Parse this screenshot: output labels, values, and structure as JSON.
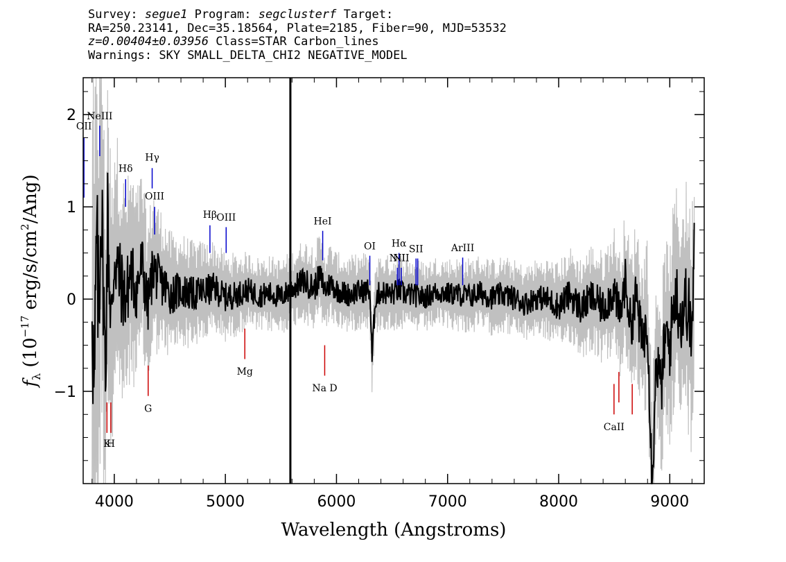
{
  "header": {
    "line1": {
      "survey_key": "Survey:",
      "survey": "segue1",
      "program_key": "Program:",
      "program": "segclusterf",
      "target_key": "Target:"
    },
    "line2": "RA=250.23141, Dec=35.18564, Plate=2185, Fiber=90, MJD=53532",
    "line3": {
      "redshift": "z=0.00404±0.03956",
      "class": "Class=STAR Carbon_lines"
    },
    "line4": "Warnings: SKY SMALL_DELTA_CHI2 NEGATIVE_MODEL"
  },
  "chart_data": {
    "type": "line",
    "title": "",
    "xlabel": "Wavelength (Angstroms)",
    "ylabel": "fλ (10⁻¹⁷ erg/s/cm²/Ang)",
    "ylabel_parts": {
      "f": "f",
      "sub": "λ",
      "a": " (10",
      "exp": "−17",
      "b": " erg/s/cm",
      "exp2": "2",
      "c": "/Ang)"
    },
    "xlim": [
      3720,
      9310
    ],
    "ylim": [
      -2.0,
      2.4
    ],
    "x_ticks": [
      4000,
      5000,
      6000,
      7000,
      8000,
      9000
    ],
    "x_tick_labels": [
      "4000",
      "5000",
      "6000",
      "7000",
      "8000",
      "9000"
    ],
    "y_ticks": [
      -1,
      0,
      1,
      2
    ],
    "y_tick_labels": [
      "−1",
      "0",
      "1",
      "2"
    ],
    "x_minor_step": 200,
    "y_minor_step": 0.25,
    "vertical_marker_x": 5585,
    "series": [
      {
        "role": "flux",
        "color": "#000000",
        "x": [
          3800,
          3820,
          3840,
          3860,
          3880,
          3900,
          3920,
          3940,
          3960,
          3980,
          4000,
          4050,
          4100,
          4150,
          4200,
          4250,
          4300,
          4350,
          4400,
          4450,
          4500,
          4600,
          4700,
          4800,
          4900,
          5000,
          5100,
          5200,
          5300,
          5400,
          5500,
          5580,
          5650,
          5700,
          5800,
          5850,
          5900,
          5950,
          6000,
          6100,
          6200,
          6300,
          6320,
          6350,
          6400,
          6500,
          6560,
          6600,
          6700,
          6800,
          6900,
          7000,
          7100,
          7200,
          7300,
          7400,
          7500,
          7600,
          7700,
          7800,
          7900,
          8000,
          8100,
          8200,
          8300,
          8400,
          8500,
          8550,
          8600,
          8650,
          8700,
          8750,
          8800,
          8840,
          8880,
          8920,
          8960,
          9000,
          9050,
          9100,
          9150,
          9200,
          9220
        ],
        "y": [
          0.25,
          -1.3,
          0.6,
          -0.2,
          1.1,
          0.3,
          -0.9,
          0.9,
          0.1,
          -0.3,
          0.5,
          0.2,
          0.0,
          0.3,
          0.1,
          0.4,
          -0.1,
          0.35,
          0.2,
          0.15,
          0.05,
          0.1,
          0.05,
          0.08,
          0.12,
          0.02,
          0.05,
          0.1,
          0.04,
          0.06,
          0.02,
          0.1,
          0.15,
          0.2,
          0.12,
          0.25,
          0.1,
          0.18,
          0.1,
          0.05,
          0.08,
          0.1,
          -0.65,
          0.02,
          0.08,
          0.05,
          0.1,
          0.06,
          0.04,
          0.02,
          0.08,
          0.06,
          0.05,
          0.03,
          0.07,
          0.02,
          0.05,
          0.01,
          -0.05,
          0.02,
          0.0,
          -0.08,
          0.05,
          -0.1,
          0.02,
          -0.1,
          0.1,
          -0.2,
          0.2,
          -0.3,
          0.05,
          -0.5,
          -0.2,
          -2.0,
          -0.6,
          -1.0,
          -0.4,
          -0.5,
          0.1,
          -0.2,
          0.0,
          -0.4,
          0.45
        ]
      },
      {
        "role": "error",
        "color": "#c0c0c0",
        "x": [
          3800,
          3850,
          3900,
          3950,
          4000,
          4100,
          4200,
          4300,
          4400,
          4500,
          4600,
          4800,
          5000,
          5200,
          5400,
          5600,
          5800,
          6000,
          6200,
          6400,
          6600,
          6800,
          7000,
          7200,
          7400,
          7600,
          7800,
          8000,
          8200,
          8400,
          8600,
          8800,
          9000,
          9220
        ],
        "y": [
          2.4,
          2.0,
          1.6,
          1.3,
          1.1,
          0.9,
          0.8,
          0.7,
          0.6,
          0.5,
          0.45,
          0.4,
          0.35,
          0.3,
          0.3,
          0.3,
          0.35,
          0.3,
          0.3,
          0.3,
          0.3,
          0.28,
          0.28,
          0.3,
          0.3,
          0.3,
          0.3,
          0.35,
          0.4,
          0.45,
          0.55,
          0.7,
          0.8,
          1.0
        ]
      }
    ],
    "lines": [
      {
        "label": "OII",
        "x": 3727,
        "color": "#0000cc",
        "y0": 1.1,
        "y1": 1.75,
        "label_y": 1.84
      },
      {
        "label": "NeIII",
        "x": 3869,
        "color": "#0000cc",
        "y0": 1.55,
        "y1": 1.88,
        "label_y": 1.95
      },
      {
        "label": "Hδ",
        "x": 4102,
        "color": "#0000cc",
        "y0": 1.0,
        "y1": 1.3,
        "label_y": 1.38
      },
      {
        "label": "Hγ",
        "x": 4341,
        "color": "#0000cc",
        "y0": 1.2,
        "y1": 1.42,
        "label_y": 1.5
      },
      {
        "label": "OIII",
        "x": 4363,
        "color": "#0000cc",
        "y0": 0.7,
        "y1": 1.0,
        "label_y": 1.08
      },
      {
        "label": "Hβ",
        "x": 4861,
        "color": "#0000cc",
        "y0": 0.5,
        "y1": 0.8,
        "label_y": 0.88
      },
      {
        "label": "OIII",
        "x": 5007,
        "color": "#0000cc",
        "y0": 0.5,
        "y1": 0.78,
        "label_y": 0.85
      },
      {
        "label": "HeI",
        "x": 5876,
        "color": "#0000cc",
        "y0": 0.42,
        "y1": 0.74,
        "label_y": 0.81
      },
      {
        "label": "OI",
        "x": 6300,
        "color": "#0000cc",
        "y0": 0.15,
        "y1": 0.47,
        "label_y": 0.54
      },
      {
        "label": "NII",
        "x": 6548,
        "color": "#0000cc",
        "y0": 0.15,
        "y1": 0.34,
        "label_y": 0.41
      },
      {
        "label": "Hα",
        "x": 6563,
        "color": "#0000cc",
        "y0": 0.15,
        "y1": 0.5,
        "label_y": 0.57
      },
      {
        "label": "NII",
        "x": 6583,
        "color": "#0000cc",
        "y0": 0.15,
        "y1": 0.34,
        "label_y": 0.41
      },
      {
        "label": "SII",
        "x": 6716,
        "color": "#0000cc",
        "y0": 0.15,
        "y1": 0.44,
        "label_y": 0.51
      },
      {
        "label": "",
        "x": 6731,
        "color": "#0000cc",
        "y0": 0.15,
        "y1": 0.44,
        "label_y": 0.51
      },
      {
        "label": "ArIII",
        "x": 7136,
        "color": "#0000cc",
        "y0": 0.15,
        "y1": 0.45,
        "label_y": 0.52
      },
      {
        "label": "K",
        "x": 3934,
        "color": "#cc0000",
        "y0": -1.45,
        "y1": -1.12,
        "label_y": -1.6
      },
      {
        "label": "H",
        "x": 3969,
        "color": "#cc0000",
        "y0": -1.45,
        "y1": -1.12,
        "label_y": -1.6
      },
      {
        "label": "G",
        "x": 4305,
        "color": "#cc0000",
        "y0": -1.05,
        "y1": -0.72,
        "label_y": -1.22
      },
      {
        "label": "Mg",
        "x": 5175,
        "color": "#cc0000",
        "y0": -0.65,
        "y1": -0.32,
        "label_y": -0.82
      },
      {
        "label": "Na  D",
        "x": 5894,
        "color": "#cc0000",
        "y0": -0.83,
        "y1": -0.5,
        "label_y": -1.0
      },
      {
        "label": "CaII",
        "x": 8498,
        "color": "#cc0000",
        "y0": -1.25,
        "y1": -0.92,
        "label_y": -1.42
      },
      {
        "label": "",
        "x": 8542,
        "color": "#cc0000",
        "y0": -1.12,
        "y1": -0.79,
        "label_y": -1.42
      },
      {
        "label": "",
        "x": 8662,
        "color": "#cc0000",
        "y0": -1.25,
        "y1": -0.92,
        "label_y": -1.42
      }
    ]
  }
}
